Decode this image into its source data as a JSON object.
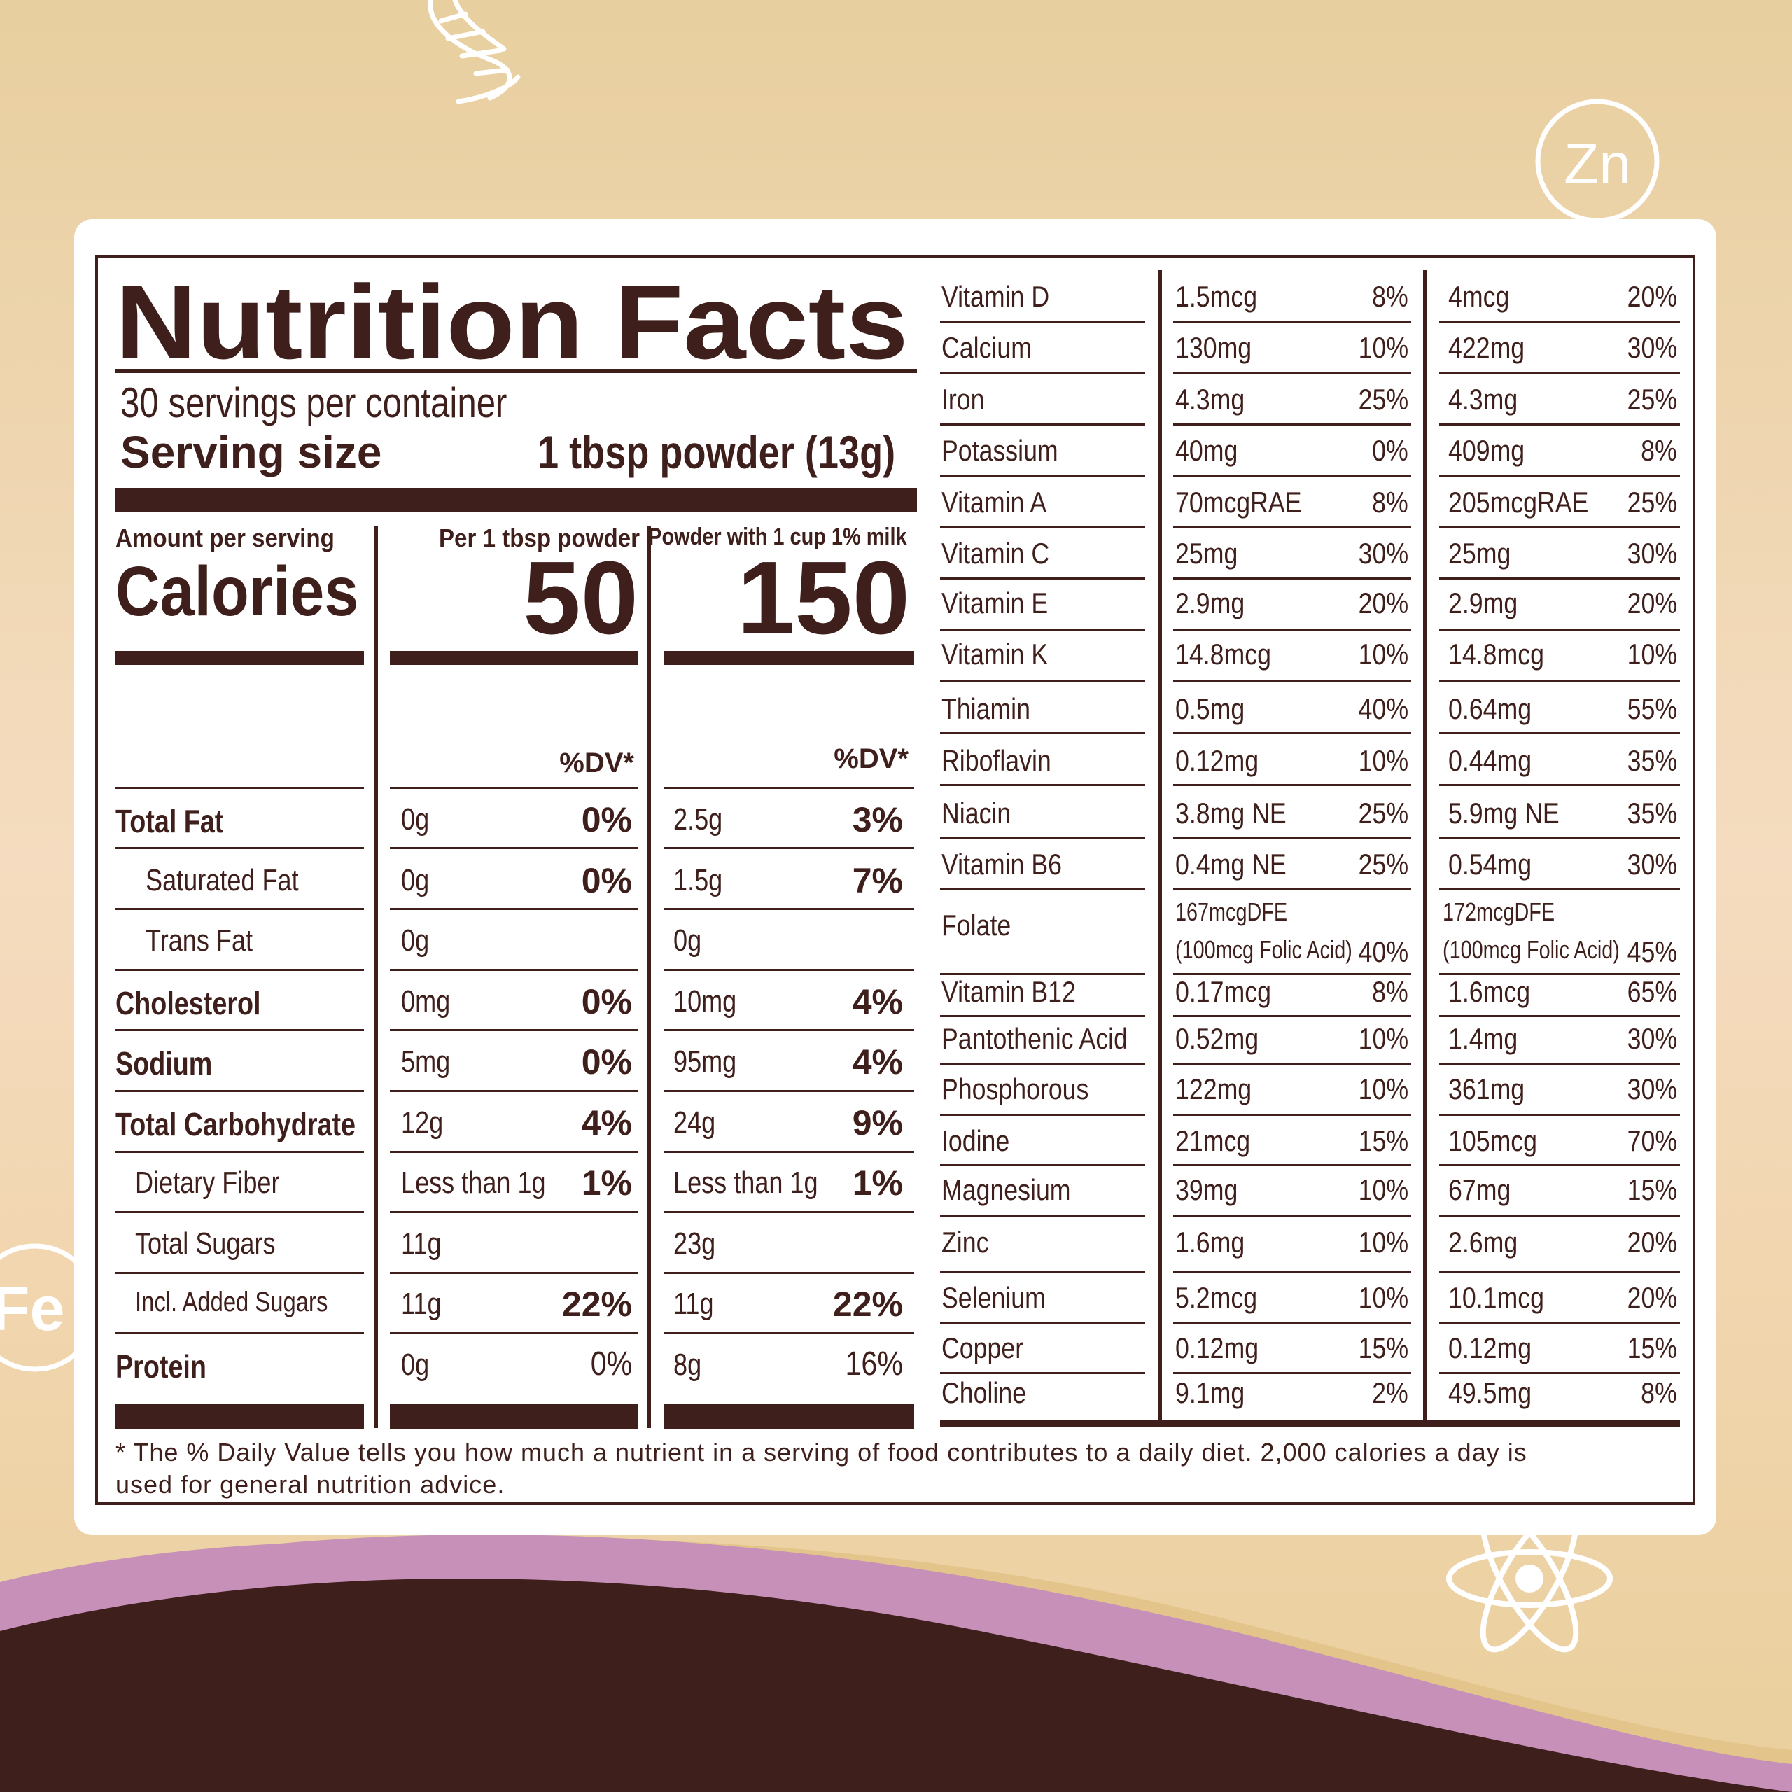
{
  "background": {
    "colors": {
      "tan": "#e8cf9f",
      "cream": "#f5dcc0",
      "brown": "#3e1f1b",
      "purple": "#c690b8",
      "gold": "#e3c58c"
    },
    "icons": [
      "dna-icon",
      "zinc-circle-icon",
      "iron-circle-icon",
      "atom-icon"
    ],
    "zinc_label": "Zn",
    "iron_label": "Fe"
  },
  "header": {
    "title": "Nutrition Facts",
    "servings": "30 servings per container",
    "serving_size_label": "Serving size",
    "serving_size_value": "1 tbsp powder (13g)"
  },
  "calories": {
    "amount_label": "Amount per serving",
    "label": "Calories",
    "col1_header": "Per 1 tbsp powder",
    "col1_value": "50",
    "col2_header": "Powder with 1 cup 1% milk",
    "col2_value": "150",
    "dv_label": "%DV*"
  },
  "macros": [
    {
      "name": "Total Fat",
      "bold": true,
      "indent": false,
      "amt1": "0g",
      "dv1": "0%",
      "dv1_bold": true,
      "amt2": "2.5g",
      "dv2": "3%",
      "dv2_bold": true
    },
    {
      "name": "Saturated Fat",
      "bold": false,
      "indent": true,
      "amt1": "0g",
      "dv1": "0%",
      "dv1_bold": true,
      "amt2": "1.5g",
      "dv2": "7%",
      "dv2_bold": true
    },
    {
      "name": "Trans Fat",
      "bold": false,
      "indent": true,
      "amt1": "0g",
      "dv1": "",
      "dv1_bold": true,
      "amt2": "0g",
      "dv2": "",
      "dv2_bold": true
    },
    {
      "name": "Cholesterol",
      "bold": true,
      "indent": false,
      "amt1": "0mg",
      "dv1": "0%",
      "dv1_bold": true,
      "amt2": "10mg",
      "dv2": "4%",
      "dv2_bold": true
    },
    {
      "name": "Sodium",
      "bold": true,
      "indent": false,
      "amt1": "5mg",
      "dv1": "0%",
      "dv1_bold": true,
      "amt2": "95mg",
      "dv2": "4%",
      "dv2_bold": true
    },
    {
      "name": "Total Carbohydrate",
      "bold": true,
      "indent": false,
      "amt1": "12g",
      "dv1": "4%",
      "dv1_bold": true,
      "amt2": "24g",
      "dv2": "9%",
      "dv2_bold": true
    },
    {
      "name": "Dietary Fiber",
      "bold": false,
      "indent": true,
      "amt1": "Less than 1g",
      "dv1": "1%",
      "dv1_bold": true,
      "amt2": "Less than 1g",
      "dv2": "1%",
      "dv2_bold": true
    },
    {
      "name": "Total Sugars",
      "bold": false,
      "indent": true,
      "amt1": "11g",
      "dv1": "",
      "dv1_bold": true,
      "amt2": "23g",
      "dv2": "",
      "dv2_bold": true
    },
    {
      "name": "Incl. Added Sugars",
      "bold": false,
      "indent": true,
      "small": true,
      "amt1": "11g",
      "dv1": "22%",
      "dv1_bold": true,
      "amt2": "11g",
      "dv2": "22%",
      "dv2_bold": true
    },
    {
      "name": "Protein",
      "bold": true,
      "indent": false,
      "amt1": "0g",
      "dv1": "0%",
      "dv1_bold": false,
      "amt2": "8g",
      "dv2": "16%",
      "dv2_bold": false
    }
  ],
  "vitamins": [
    {
      "name": "Vitamin D",
      "amt1": "1.5mcg",
      "dv1": "8%",
      "amt2": "4mcg",
      "dv2": "20%"
    },
    {
      "name": "Calcium",
      "amt1": "130mg",
      "dv1": "10%",
      "amt2": "422mg",
      "dv2": "30%"
    },
    {
      "name": "Iron",
      "amt1": "4.3mg",
      "dv1": "25%",
      "amt2": "4.3mg",
      "dv2": "25%"
    },
    {
      "name": "Potassium",
      "amt1": "40mg",
      "dv1": "0%",
      "amt2": "409mg",
      "dv2": "8%"
    },
    {
      "name": "Vitamin A",
      "amt1": "70mcgRAE",
      "dv1": "8%",
      "amt2": "205mcgRAE",
      "dv2": "25%"
    },
    {
      "name": "Vitamin C",
      "amt1": "25mg",
      "dv1": "30%",
      "amt2": "25mg",
      "dv2": "30%"
    },
    {
      "name": "Vitamin E",
      "amt1": "2.9mg",
      "dv1": "20%",
      "amt2": "2.9mg",
      "dv2": "20%"
    },
    {
      "name": "Vitamin K",
      "amt1": "14.8mcg",
      "dv1": "10%",
      "amt2": "14.8mcg",
      "dv2": "10%"
    },
    {
      "name": "Thiamin",
      "amt1": "0.5mg",
      "dv1": "40%",
      "amt2": "0.64mg",
      "dv2": "55%"
    },
    {
      "name": "Riboflavin",
      "amt1": "0.12mg",
      "dv1": "10%",
      "amt2": "0.44mg",
      "dv2": "35%"
    },
    {
      "name": "Niacin",
      "amt1": "3.8mg NE",
      "dv1": "25%",
      "amt2": "5.9mg NE",
      "dv2": "35%"
    },
    {
      "name": "Vitamin B6",
      "amt1": "0.4mg NE",
      "dv1": "25%",
      "amt2": "0.54mg",
      "dv2": "30%"
    },
    {
      "name": "Folate",
      "amt1": "167mcgDFE",
      "amt1b": "(100mcg Folic Acid)",
      "dv1": "40%",
      "amt2": "172mcgDFE",
      "amt2b": "(100mcg Folic Acid)",
      "dv2": "45%"
    },
    {
      "name": "Vitamin B12",
      "amt1": "0.17mcg",
      "dv1": "8%",
      "amt2": "1.6mcg",
      "dv2": "65%"
    },
    {
      "name": "Pantothenic Acid",
      "amt1": "0.52mg",
      "dv1": "10%",
      "amt2": "1.4mg",
      "dv2": "30%"
    },
    {
      "name": "Phosphorous",
      "amt1": "122mg",
      "dv1": "10%",
      "amt2": "361mg",
      "dv2": "30%"
    },
    {
      "name": "Iodine",
      "amt1": "21mcg",
      "dv1": "15%",
      "amt2": "105mcg",
      "dv2": "70%"
    },
    {
      "name": "Magnesium",
      "amt1": "39mg",
      "dv1": "10%",
      "amt2": "67mg",
      "dv2": "15%"
    },
    {
      "name": "Zinc",
      "amt1": "1.6mg",
      "dv1": "10%",
      "amt2": "2.6mg",
      "dv2": "20%"
    },
    {
      "name": "Selenium",
      "amt1": "5.2mcg",
      "dv1": "10%",
      "amt2": "10.1mcg",
      "dv2": "20%"
    },
    {
      "name": "Copper",
      "amt1": "0.12mg",
      "dv1": "15%",
      "amt2": "0.12mg",
      "dv2": "15%"
    },
    {
      "name": "Choline",
      "amt1": "9.1mg",
      "dv1": "2%",
      "amt2": "49.5mg",
      "dv2": "8%"
    }
  ],
  "footnote": {
    "line1": "* The % Daily Value tells you how much a nutrient in a serving of food contributes to a daily diet. 2,000 calories a day is",
    "line2": "used for general nutrition advice."
  }
}
